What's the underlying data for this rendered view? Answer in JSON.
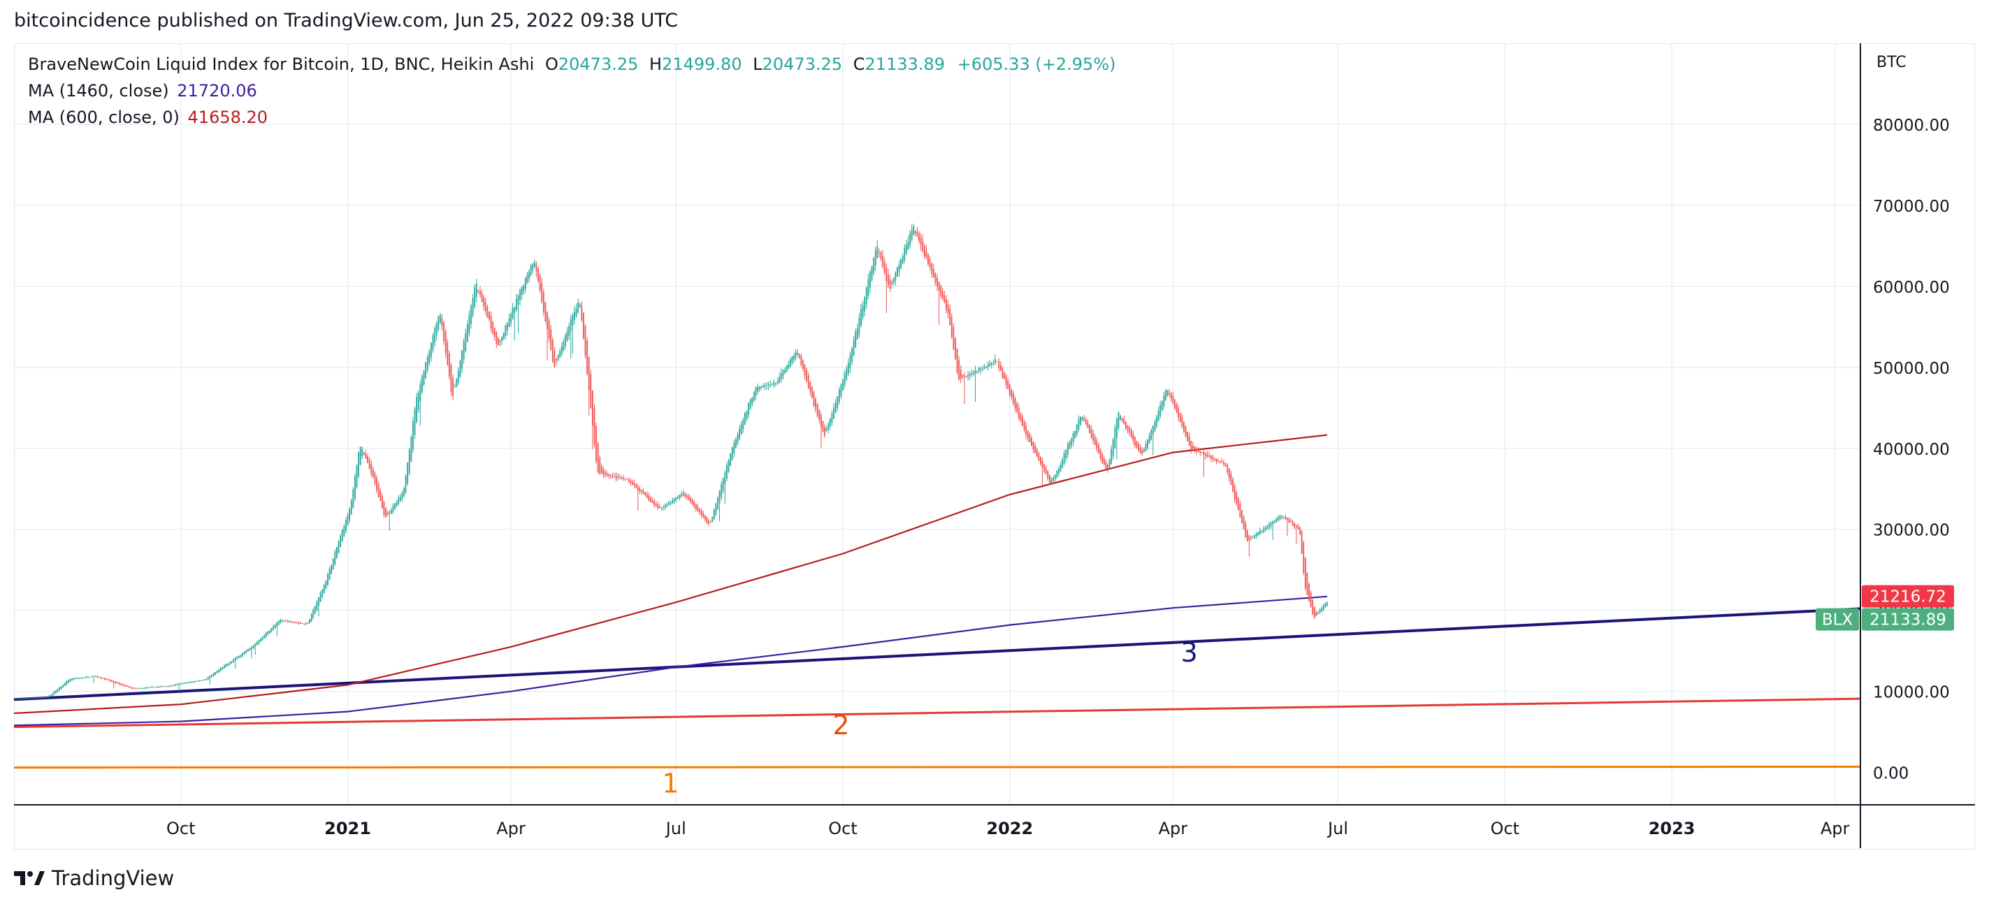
{
  "header": {
    "published_line": "bitcoincidence published on TradingView.com, Jun 25, 2022 09:38 UTC"
  },
  "legend": {
    "symbol_line": "BraveNewCoin Liquid Index for Bitcoin, 1D, BNC, Heikin Ashi",
    "open_label": "O",
    "open_value": "20473.25",
    "high_label": "H",
    "high_value": "21499.80",
    "low_label": "L",
    "low_value": "20473.25",
    "close_label": "C",
    "close_value": "21133.89",
    "change": "+605.33 (+2.95%)",
    "ma1_label": "MA (1460, close)",
    "ma1_value": "21720.06",
    "ma2_label": "MA (600, close, 0)",
    "ma2_value": "41658.20"
  },
  "price_scale": {
    "currency": "BTC",
    "badge_ma_value": "21216.72",
    "badge_symbol": "BLX",
    "badge_price_value": "21133.89"
  },
  "footer": {
    "brand": "TradingView"
  },
  "colors": {
    "up": "#26a69a",
    "down": "#ef5350",
    "ma1460": "#3f1f9e",
    "ma600": "#b71c1c",
    "line1": "#f57c00",
    "line2": "#e53935",
    "line3": "#1a1478",
    "grid": "#e8f0f3",
    "badge_ma": "#f23645",
    "badge_price": "#4caf7d"
  },
  "chart_data": {
    "type": "candlestick",
    "title": "BraveNewCoin Liquid Index for Bitcoin, 1D, BNC, Heikin Ashi",
    "ylabel": "BTC",
    "ylim": [
      -4000,
      90000
    ],
    "x_range": [
      "2020-07-01",
      "2023-04-15"
    ],
    "y_ticks": [
      "0.00",
      "10000.00",
      "20000.00",
      "30000.00",
      "40000.00",
      "50000.00",
      "60000.00",
      "70000.00",
      "80000.00"
    ],
    "x_ticks": [
      {
        "label": "Oct",
        "date": "2020-10-01",
        "bold": false
      },
      {
        "label": "2021",
        "date": "2021-01-01",
        "bold": true
      },
      {
        "label": "Apr",
        "date": "2021-04-01",
        "bold": false
      },
      {
        "label": "Jul",
        "date": "2021-07-01",
        "bold": false
      },
      {
        "label": "Oct",
        "date": "2021-10-01",
        "bold": false
      },
      {
        "label": "2022",
        "date": "2022-01-01",
        "bold": true
      },
      {
        "label": "Apr",
        "date": "2022-04-01",
        "bold": false
      },
      {
        "label": "Jul",
        "date": "2022-07-01",
        "bold": false
      },
      {
        "label": "Oct",
        "date": "2022-10-01",
        "bold": false
      },
      {
        "label": "2023",
        "date": "2023-01-01",
        "bold": true
      },
      {
        "label": "Apr",
        "date": "2023-04-01",
        "bold": false
      }
    ],
    "price_path": [
      [
        "2020-07-01",
        9100
      ],
      [
        "2020-07-20",
        9300
      ],
      [
        "2020-08-01",
        11500
      ],
      [
        "2020-08-15",
        11900
      ],
      [
        "2020-09-05",
        10300
      ],
      [
        "2020-09-25",
        10700
      ],
      [
        "2020-10-15",
        11500
      ],
      [
        "2020-10-25",
        13100
      ],
      [
        "2020-11-10",
        15600
      ],
      [
        "2020-11-25",
        18800
      ],
      [
        "2020-12-10",
        18300
      ],
      [
        "2020-12-20",
        23500
      ],
      [
        "2021-01-03",
        33000
      ],
      [
        "2021-01-08",
        40500
      ],
      [
        "2021-01-15",
        36500
      ],
      [
        "2021-01-22",
        31500
      ],
      [
        "2021-02-01",
        34500
      ],
      [
        "2021-02-08",
        46000
      ],
      [
        "2021-02-21",
        57000
      ],
      [
        "2021-02-28",
        46000
      ],
      [
        "2021-03-13",
        60500
      ],
      [
        "2021-03-25",
        52500
      ],
      [
        "2021-04-14",
        63500
      ],
      [
        "2021-04-25",
        50000
      ],
      [
        "2021-05-09",
        58500
      ],
      [
        "2021-05-19",
        37000
      ],
      [
        "2021-06-05",
        36000
      ],
      [
        "2021-06-22",
        32500
      ],
      [
        "2021-07-05",
        34500
      ],
      [
        "2021-07-20",
        30500
      ],
      [
        "2021-08-01",
        40000
      ],
      [
        "2021-08-14",
        47500
      ],
      [
        "2021-08-25",
        48000
      ],
      [
        "2021-09-06",
        52000
      ],
      [
        "2021-09-21",
        41500
      ],
      [
        "2021-10-05",
        51000
      ],
      [
        "2021-10-20",
        65000
      ],
      [
        "2021-10-27",
        59500
      ],
      [
        "2021-11-09",
        67500
      ],
      [
        "2021-11-28",
        57000
      ],
      [
        "2021-12-04",
        48500
      ],
      [
        "2021-12-25",
        50800
      ],
      [
        "2022-01-10",
        41800
      ],
      [
        "2022-01-24",
        35500
      ],
      [
        "2022-02-10",
        44200
      ],
      [
        "2022-02-24",
        37000
      ],
      [
        "2022-03-02",
        44500
      ],
      [
        "2022-03-15",
        39000
      ],
      [
        "2022-03-29",
        47500
      ],
      [
        "2022-04-11",
        40000
      ],
      [
        "2022-04-30",
        38000
      ],
      [
        "2022-05-09",
        31000
      ],
      [
        "2022-05-12",
        28500
      ],
      [
        "2022-05-31",
        31700
      ],
      [
        "2022-06-10",
        30000
      ],
      [
        "2022-06-13",
        23000
      ],
      [
        "2022-06-18",
        19000
      ],
      [
        "2022-06-25",
        21133
      ]
    ],
    "series": [
      {
        "name": "MA (1460, close)",
        "type": "line",
        "color": "#3f1f9e",
        "points": [
          [
            "2020-07-01",
            5800
          ],
          [
            "2020-10-01",
            6300
          ],
          [
            "2021-01-01",
            7500
          ],
          [
            "2021-04-01",
            10000
          ],
          [
            "2021-07-01",
            13000
          ],
          [
            "2021-10-01",
            15500
          ],
          [
            "2022-01-01",
            18200
          ],
          [
            "2022-04-01",
            20300
          ],
          [
            "2022-06-25",
            21720
          ]
        ]
      },
      {
        "name": "MA (600, close, 0)",
        "type": "line",
        "color": "#b71c1c",
        "points": [
          [
            "2020-07-01",
            7300
          ],
          [
            "2020-10-01",
            8400
          ],
          [
            "2021-01-01",
            10800
          ],
          [
            "2021-04-01",
            15500
          ],
          [
            "2021-07-01",
            21000
          ],
          [
            "2021-10-01",
            27000
          ],
          [
            "2022-01-01",
            34300
          ],
          [
            "2022-04-01",
            39500
          ],
          [
            "2022-06-25",
            41658
          ]
        ]
      }
    ],
    "trendlines": [
      {
        "label": "1",
        "color": "#f57c00",
        "label_color": "#f57c00",
        "width": 3,
        "from": [
          "2020-07-01",
          600
        ],
        "to": [
          "2023-04-15",
          700
        ],
        "label_at": [
          "2021-06-28",
          -2500
        ]
      },
      {
        "label": "2",
        "color": "#e53935",
        "label_color": "#e65100",
        "width": 3,
        "from": [
          "2020-07-01",
          5600
        ],
        "to": [
          "2023-04-15",
          9100
        ],
        "label_at": [
          "2021-09-30",
          4700
        ]
      },
      {
        "label": "3",
        "color": "#1a1478",
        "label_color": "#1a1478",
        "width": 4,
        "from": [
          "2020-07-01",
          9000
        ],
        "to": [
          "2023-04-15",
          20200
        ],
        "label_at": [
          "2022-04-10",
          13700
        ]
      }
    ]
  }
}
